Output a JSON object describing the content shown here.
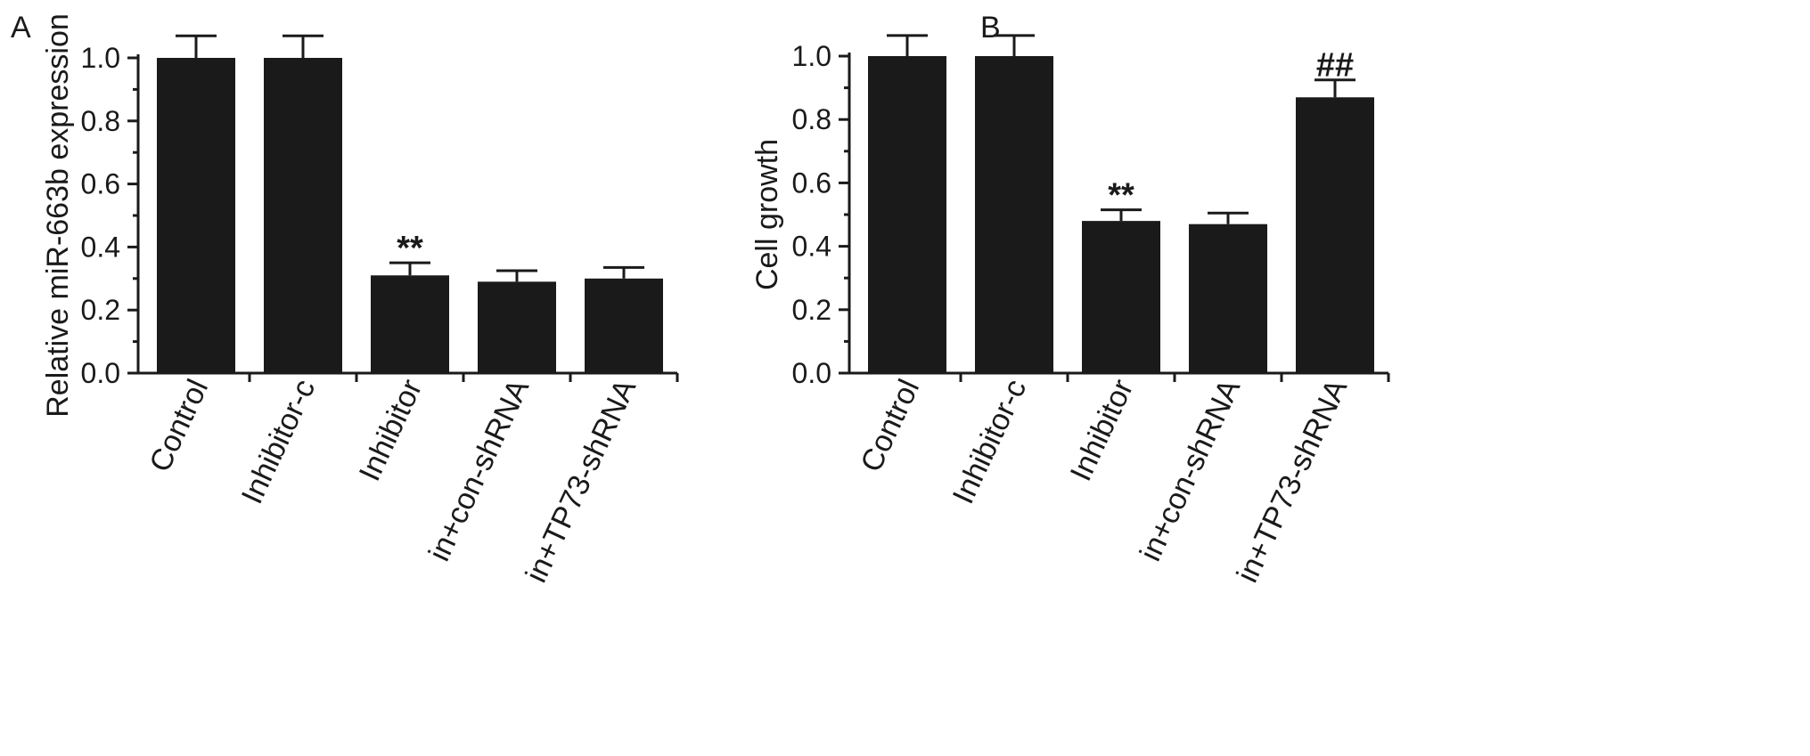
{
  "chart_data": [
    {
      "panel": "A",
      "type": "bar",
      "ylabel": "Relative miR-663b expression",
      "ylim": [
        0,
        1.0
      ],
      "yticks": [
        "0.0",
        "0.2",
        "0.4",
        "0.6",
        "0.8",
        "1.0"
      ],
      "categories": [
        "Control",
        "Inhibitor-c",
        "Inhibitor",
        "in+con-shRNA",
        "in+TP73-shRNA"
      ],
      "values": [
        1.0,
        1.0,
        0.31,
        0.29,
        0.3
      ],
      "errors": [
        0.07,
        0.07,
        0.04,
        0.035,
        0.035
      ],
      "annotations": [
        "",
        "",
        "**",
        "",
        ""
      ],
      "bar_color": "#1a1a1a"
    },
    {
      "panel": "B",
      "type": "bar",
      "ylabel": "Cell growth",
      "ylim": [
        0,
        1.0
      ],
      "yticks": [
        "0.0",
        "0.2",
        "0.4",
        "0.6",
        "0.8",
        "1.0"
      ],
      "categories": [
        "Control",
        "Inhibitor-c",
        "Inhibitor",
        "in+con-shRNA",
        "in+TP73-shRNA"
      ],
      "values": [
        1.0,
        1.0,
        0.48,
        0.47,
        0.87
      ],
      "errors": [
        0.065,
        0.065,
        0.035,
        0.035,
        0.055
      ],
      "annotations": [
        "",
        "",
        "**",
        "",
        "##"
      ],
      "bar_color": "#1a1a1a"
    }
  ]
}
